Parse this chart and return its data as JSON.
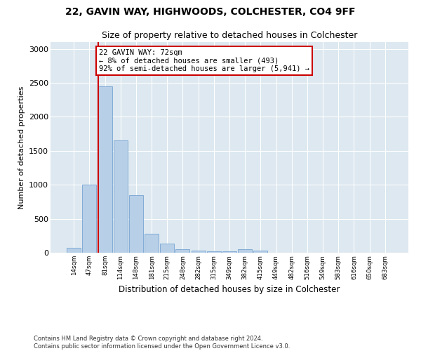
{
  "title1": "22, GAVIN WAY, HIGHWOODS, COLCHESTER, CO4 9FF",
  "title2": "Size of property relative to detached houses in Colchester",
  "xlabel": "Distribution of detached houses by size in Colchester",
  "ylabel": "Number of detached properties",
  "categories": [
    "14sqm",
    "47sqm",
    "81sqm",
    "114sqm",
    "148sqm",
    "181sqm",
    "215sqm",
    "248sqm",
    "282sqm",
    "315sqm",
    "349sqm",
    "382sqm",
    "415sqm",
    "449sqm",
    "482sqm",
    "516sqm",
    "549sqm",
    "583sqm",
    "616sqm",
    "650sqm",
    "683sqm"
  ],
  "values": [
    75,
    1000,
    2450,
    1650,
    850,
    280,
    130,
    55,
    35,
    25,
    20,
    50,
    30,
    5,
    0,
    0,
    0,
    0,
    0,
    0,
    0
  ],
  "bar_color": "#b8cfe8",
  "bar_edge_color": "#6699cc",
  "annotation_box_text": "22 GAVIN WAY: 72sqm\n← 8% of detached houses are smaller (493)\n92% of semi-detached houses are larger (5,941) →",
  "annotation_box_color": "white",
  "annotation_box_edge_color": "#cc0000",
  "annotation_line_color": "#cc0000",
  "ylim": [
    0,
    3100
  ],
  "yticks": [
    0,
    500,
    1000,
    1500,
    2000,
    2500,
    3000
  ],
  "background_color": "#dde8f0",
  "footer1": "Contains HM Land Registry data © Crown copyright and database right 2024.",
  "footer2": "Contains public sector information licensed under the Open Government Licence v3.0."
}
